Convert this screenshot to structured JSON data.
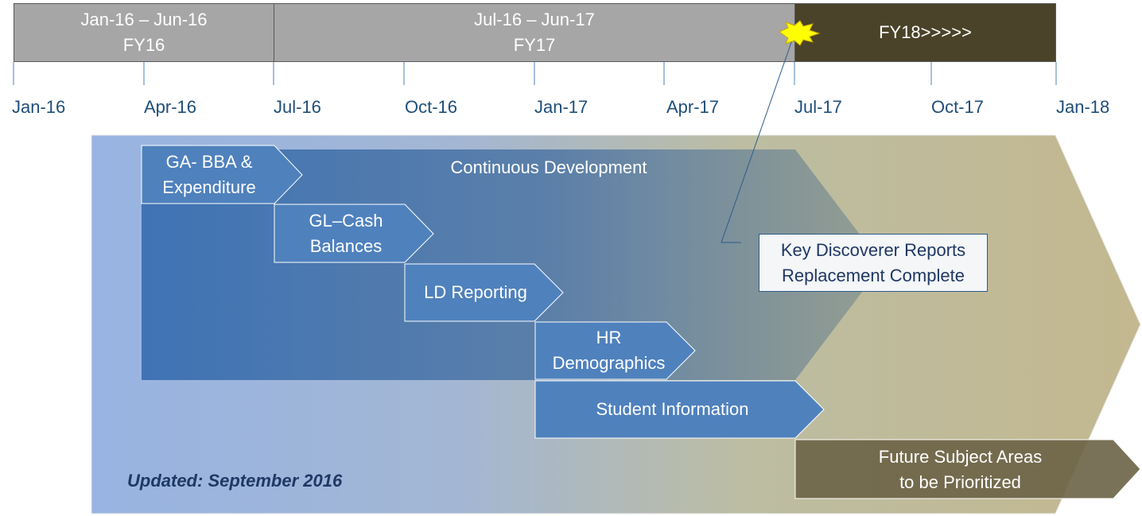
{
  "fiscal_years": [
    {
      "range": "Jan-16 – Jun-16",
      "label": "FY16"
    },
    {
      "range": "Jul-16 – Jun-17",
      "label": "FY17"
    },
    {
      "range": "",
      "label": "FY18>>>>>"
    }
  ],
  "timeline_ticks": [
    "Jan-16",
    "Apr-16",
    "Jul-16",
    "Oct-16",
    "Jan-17",
    "Apr-17",
    "Jul-17",
    "Oct-17",
    "Jan-18"
  ],
  "banner_label": "Continuous Development",
  "milestones": [
    {
      "lines": [
        "GA- BBA &",
        "Expenditure"
      ]
    },
    {
      "lines": [
        "GL–Cash",
        "Balances"
      ]
    },
    {
      "lines": [
        "LD Reporting"
      ]
    },
    {
      "lines": [
        "HR",
        "Demographics"
      ]
    },
    {
      "lines": [
        "Student Information"
      ]
    }
  ],
  "future": {
    "lines": [
      "Future Subject Areas",
      "to be Prioritized"
    ]
  },
  "callout": {
    "lines": [
      "Key Discoverer Reports",
      "Replacement Complete"
    ]
  },
  "updated_note": "Updated: September 2016",
  "colors": {
    "fy_past": "#a6a6a6",
    "fy_current": "#4a4329",
    "timeline_blue": "#1f4e79",
    "arrow_blue": "#4f81bd",
    "future_olive": "#6b6346",
    "burst_yellow": "#ffff00"
  }
}
